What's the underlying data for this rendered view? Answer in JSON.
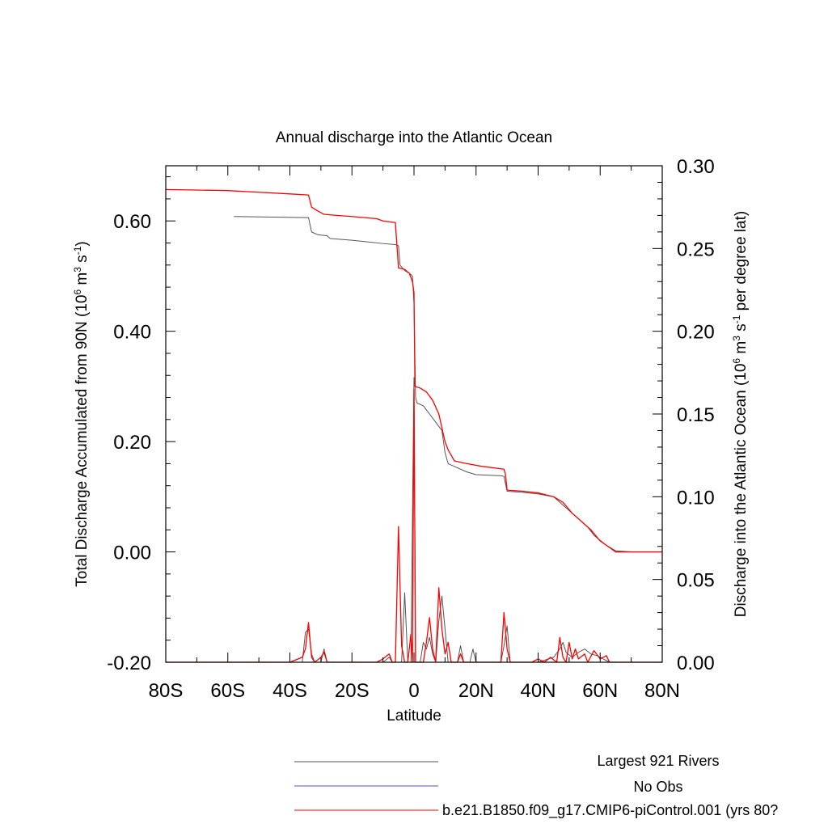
{
  "chart_data": {
    "type": "line",
    "title": "Annual discharge into the Atlantic Ocean",
    "xlabel": "Latitude",
    "xlim": [
      -80,
      80
    ],
    "x_ticks": [
      {
        "value": -80,
        "label": "80S"
      },
      {
        "value": -60,
        "label": "60S"
      },
      {
        "value": -40,
        "label": "40S"
      },
      {
        "value": -20,
        "label": "20S"
      },
      {
        "value": 0,
        "label": "0"
      },
      {
        "value": 20,
        "label": "20N"
      },
      {
        "value": 40,
        "label": "40N"
      },
      {
        "value": 60,
        "label": "60N"
      },
      {
        "value": 80,
        "label": "80N"
      }
    ],
    "left_axis": {
      "label_main": "Total Discharge Accumulated from 90N (10",
      "label_sup1": "6",
      "label_mid": " m",
      "label_sup2": "3",
      "label_mid2": " s",
      "label_sup3": "-1",
      "label_end": ")",
      "ylim": [
        -0.2,
        0.7
      ],
      "ticks": [
        {
          "value": -0.2,
          "label": "-0.20"
        },
        {
          "value": 0.0,
          "label": "0.00"
        },
        {
          "value": 0.2,
          "label": "0.20"
        },
        {
          "value": 0.4,
          "label": "0.40"
        },
        {
          "value": 0.6,
          "label": "0.60"
        }
      ]
    },
    "right_axis": {
      "label_main": "Discharge into the Atlantic Ocean (10",
      "label_sup1": "6",
      "label_mid": " m",
      "label_sup2": "3",
      "label_mid2": " s",
      "label_sup3": "-1",
      "label_end": " per degree lat)",
      "ylim": [
        0.0,
        0.3
      ],
      "ticks": [
        {
          "value": 0.0,
          "label": "0.00"
        },
        {
          "value": 0.05,
          "label": "0.05"
        },
        {
          "value": 0.1,
          "label": "0.10"
        },
        {
          "value": 0.15,
          "label": "0.15"
        },
        {
          "value": 0.2,
          "label": "0.20"
        },
        {
          "value": 0.25,
          "label": "0.25"
        },
        {
          "value": 0.3,
          "label": "0.30"
        }
      ]
    },
    "series": [
      {
        "name": "Largest 921 Rivers",
        "color": "#555555",
        "axis": "left",
        "kind": "accumulated",
        "points": [
          [
            -58,
            0.608
          ],
          [
            -34,
            0.606
          ],
          [
            -33,
            0.58
          ],
          [
            -31,
            0.575
          ],
          [
            -28,
            0.573
          ],
          [
            -27,
            0.568
          ],
          [
            -20,
            0.565
          ],
          [
            -15,
            0.562
          ],
          [
            -10,
            0.559
          ],
          [
            -6,
            0.557
          ],
          [
            -5,
            0.555
          ],
          [
            -4.5,
            0.52
          ],
          [
            -3,
            0.51
          ],
          [
            -1.5,
            0.505
          ],
          [
            -0.5,
            0.5
          ],
          [
            0,
            0.45
          ],
          [
            0.5,
            0.28
          ],
          [
            1,
            0.27
          ],
          [
            3,
            0.265
          ],
          [
            5,
            0.25
          ],
          [
            7,
            0.235
          ],
          [
            9,
            0.22
          ],
          [
            10,
            0.18
          ],
          [
            11,
            0.16
          ],
          [
            13,
            0.155
          ],
          [
            17,
            0.145
          ],
          [
            20,
            0.14
          ],
          [
            28,
            0.138
          ],
          [
            29,
            0.137
          ],
          [
            30,
            0.11
          ],
          [
            35,
            0.108
          ],
          [
            40,
            0.105
          ],
          [
            45,
            0.1
          ],
          [
            48,
            0.085
          ],
          [
            50,
            0.075
          ],
          [
            53,
            0.06
          ],
          [
            56,
            0.045
          ],
          [
            58,
            0.03
          ],
          [
            62,
            0.012
          ],
          [
            65,
            0.002
          ],
          [
            70,
            0.0
          ],
          [
            80,
            0.0
          ]
        ]
      },
      {
        "name": "No Obs",
        "color": "#4a4aff",
        "axis": "left",
        "kind": "legend-only",
        "points": []
      },
      {
        "name": "b.e21.B1850.f09_g17.CMIP6-piControl.001 (yrs 80?",
        "color": "#ff0000",
        "axis": "left",
        "kind": "accumulated",
        "points": [
          [
            -80,
            0.657
          ],
          [
            -60,
            0.655
          ],
          [
            -50,
            0.652
          ],
          [
            -40,
            0.649
          ],
          [
            -34,
            0.647
          ],
          [
            -33,
            0.625
          ],
          [
            -31,
            0.618
          ],
          [
            -29,
            0.612
          ],
          [
            -25,
            0.61
          ],
          [
            -20,
            0.608
          ],
          [
            -12,
            0.604
          ],
          [
            -10,
            0.6
          ],
          [
            -6,
            0.597
          ],
          [
            -5,
            0.515
          ],
          [
            -3,
            0.512
          ],
          [
            -1.5,
            0.505
          ],
          [
            -0.5,
            0.49
          ],
          [
            0,
            0.47
          ],
          [
            0.3,
            0.3
          ],
          [
            2,
            0.297
          ],
          [
            4,
            0.29
          ],
          [
            6,
            0.275
          ],
          [
            8,
            0.25
          ],
          [
            10,
            0.2
          ],
          [
            11,
            0.185
          ],
          [
            13,
            0.165
          ],
          [
            17,
            0.16
          ],
          [
            22,
            0.155
          ],
          [
            29,
            0.15
          ],
          [
            29.5,
            0.14
          ],
          [
            30,
            0.112
          ],
          [
            35,
            0.11
          ],
          [
            40,
            0.107
          ],
          [
            45,
            0.1
          ],
          [
            48,
            0.09
          ],
          [
            51,
            0.07
          ],
          [
            54,
            0.055
          ],
          [
            57,
            0.04
          ],
          [
            60,
            0.02
          ],
          [
            63,
            0.008
          ],
          [
            65,
            0.0
          ],
          [
            80,
            0.0
          ]
        ]
      },
      {
        "name": "Largest 921 Rivers (per degree lat)",
        "color": "#555555",
        "axis": "right",
        "kind": "per-degree",
        "points": [
          [
            -80,
            0.0
          ],
          [
            -36,
            0.0
          ],
          [
            -35,
            0.018
          ],
          [
            -34,
            0.02
          ],
          [
            -33,
            0.005
          ],
          [
            -32,
            0.0
          ],
          [
            -30,
            0.0
          ],
          [
            -29,
            0.008
          ],
          [
            -28,
            0.0
          ],
          [
            -20,
            0.0
          ],
          [
            -10,
            0.0
          ],
          [
            -8,
            0.003
          ],
          [
            -7,
            0.0
          ],
          [
            -4,
            0.0
          ],
          [
            -3,
            0.042
          ],
          [
            -2,
            0.0
          ],
          [
            -1,
            0.0
          ],
          [
            0,
            0.172
          ],
          [
            0.5,
            0.0
          ],
          [
            2,
            0.0
          ],
          [
            3,
            0.012
          ],
          [
            4,
            0.008
          ],
          [
            5,
            0.015
          ],
          [
            6,
            0.005
          ],
          [
            7,
            0.0
          ],
          [
            8,
            0.025
          ],
          [
            9,
            0.04
          ],
          [
            10,
            0.02
          ],
          [
            11,
            0.0
          ],
          [
            14,
            0.0
          ],
          [
            15,
            0.01
          ],
          [
            16,
            0.0
          ],
          [
            18,
            0.0
          ],
          [
            19,
            0.008
          ],
          [
            20,
            0.0
          ],
          [
            28,
            0.0
          ],
          [
            29,
            0.01
          ],
          [
            30,
            0.022
          ],
          [
            31,
            0.0
          ],
          [
            40,
            0.0
          ],
          [
            45,
            0.003
          ],
          [
            47,
            0.008
          ],
          [
            48,
            0.012
          ],
          [
            49,
            0.006
          ],
          [
            51,
            0.003
          ],
          [
            53,
            0.006
          ],
          [
            55,
            0.008
          ],
          [
            57,
            0.005
          ],
          [
            59,
            0.004
          ],
          [
            61,
            0.002
          ],
          [
            63,
            0.0
          ],
          [
            80,
            0.0
          ]
        ]
      },
      {
        "name": "b.e21.B1850.f09_g17.CMIP6-piControl.001 (per degree lat)",
        "color": "#ff0000",
        "axis": "right",
        "kind": "per-degree",
        "points": [
          [
            -80,
            0.0
          ],
          [
            -40,
            0.0
          ],
          [
            -36,
            0.003
          ],
          [
            -35,
            0.008
          ],
          [
            -34,
            0.024
          ],
          [
            -33,
            0.003
          ],
          [
            -32,
            0.0
          ],
          [
            -30,
            0.003
          ],
          [
            -29,
            0.006
          ],
          [
            -28,
            0.0
          ],
          [
            -20,
            0.0
          ],
          [
            -12,
            0.0
          ],
          [
            -10,
            0.002
          ],
          [
            -8,
            0.005
          ],
          [
            -7,
            0.0
          ],
          [
            -6,
            0.0
          ],
          [
            -5,
            0.082
          ],
          [
            -4,
            0.01
          ],
          [
            -3,
            0.0
          ],
          [
            -2,
            0.0
          ],
          [
            -1,
            0.017
          ],
          [
            -0.5,
            0.0
          ],
          [
            0,
            0.165
          ],
          [
            0.5,
            0.0
          ],
          [
            3,
            0.0
          ],
          [
            4,
            0.012
          ],
          [
            5,
            0.027
          ],
          [
            6,
            0.008
          ],
          [
            7,
            0.0
          ],
          [
            8,
            0.045
          ],
          [
            9,
            0.02
          ],
          [
            10,
            0.005
          ],
          [
            11,
            0.012
          ],
          [
            12,
            0.0
          ],
          [
            14,
            0.0
          ],
          [
            15,
            0.005
          ],
          [
            16,
            0.0
          ],
          [
            28,
            0.0
          ],
          [
            29,
            0.03
          ],
          [
            30,
            0.008
          ],
          [
            31,
            0.0
          ],
          [
            38,
            0.0
          ],
          [
            40,
            0.002
          ],
          [
            42,
            0.0
          ],
          [
            44,
            0.003
          ],
          [
            46,
            0.0
          ],
          [
            47,
            0.015
          ],
          [
            48,
            0.003
          ],
          [
            49,
            0.0
          ],
          [
            50,
            0.012
          ],
          [
            51,
            0.002
          ],
          [
            52,
            0.008
          ],
          [
            53,
            0.002
          ],
          [
            55,
            0.005
          ],
          [
            56,
            0.0
          ],
          [
            58,
            0.007
          ],
          [
            60,
            0.002
          ],
          [
            62,
            0.004
          ],
          [
            63,
            0.0
          ],
          [
            80,
            0.0
          ]
        ]
      }
    ],
    "legend": {
      "placement": "bottom-center",
      "entries": [
        {
          "label": "Largest 921 Rivers",
          "color": "#555555"
        },
        {
          "label": "No Obs",
          "color": "#4a4aff"
        },
        {
          "label": "b.e21.B1850.f09_g17.CMIP6-piControl.001 (yrs 80?",
          "color": "#ff0000"
        }
      ]
    },
    "grid": false
  }
}
